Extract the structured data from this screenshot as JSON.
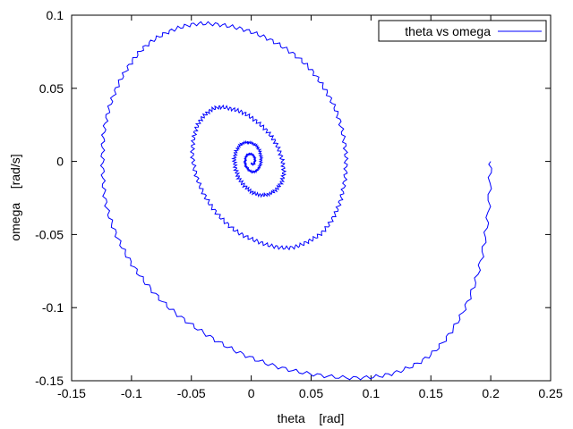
{
  "chart_data": {
    "type": "line",
    "title": "",
    "xlabel": "theta    [rad]",
    "ylabel": "omega    [rad/s]",
    "xlim": [
      -0.15,
      0.25
    ],
    "ylim": [
      -0.15,
      0.1
    ],
    "x_ticks": [
      -0.15,
      -0.1,
      -0.05,
      0,
      0.05,
      0.1,
      0.15,
      0.2,
      0.25
    ],
    "x_tick_labels": [
      "-0.15",
      "-0.1",
      "-0.05",
      "0",
      "0.05",
      "0.1",
      "0.15",
      "0.2",
      "0.25"
    ],
    "y_ticks": [
      -0.15,
      -0.1,
      -0.05,
      0,
      0.05,
      0.1
    ],
    "y_tick_labels": [
      "-0.15",
      "-0.1",
      "-0.05",
      "0",
      "0.05",
      "0.1"
    ],
    "grid": false,
    "legend_position": "top-right",
    "series": [
      {
        "name": "theta vs omega",
        "color": "#0000ff",
        "points": [
          [
            0.2,
            0.0
          ],
          [
            0.197,
            -0.042
          ],
          [
            0.188,
            -0.08
          ],
          [
            0.172,
            -0.11
          ],
          [
            0.15,
            -0.132
          ],
          [
            0.122,
            -0.144
          ],
          [
            0.091,
            -0.148
          ],
          [
            0.055,
            -0.146
          ],
          [
            0.02,
            -0.14
          ],
          [
            -0.012,
            -0.13
          ],
          [
            -0.042,
            -0.116
          ],
          [
            -0.07,
            -0.099
          ],
          [
            -0.093,
            -0.078
          ],
          [
            -0.11,
            -0.055
          ],
          [
            -0.121,
            -0.03
          ],
          [
            -0.124,
            -0.005
          ],
          [
            -0.123,
            0.02
          ],
          [
            -0.116,
            0.043
          ],
          [
            -0.104,
            0.063
          ],
          [
            -0.088,
            0.079
          ],
          [
            -0.068,
            0.089
          ],
          [
            -0.046,
            0.094
          ],
          [
            -0.022,
            0.093
          ],
          [
            0.002,
            0.088
          ],
          [
            0.025,
            0.079
          ],
          [
            0.046,
            0.066
          ],
          [
            0.061,
            0.05
          ],
          [
            0.072,
            0.032
          ],
          [
            0.078,
            0.012
          ],
          [
            0.079,
            -0.005
          ],
          [
            0.076,
            -0.022
          ],
          [
            0.07,
            -0.036
          ],
          [
            0.06,
            -0.048
          ],
          [
            0.047,
            -0.055
          ],
          [
            0.033,
            -0.059
          ],
          [
            0.018,
            -0.058
          ],
          [
            0.003,
            -0.054
          ],
          [
            -0.012,
            -0.048
          ],
          [
            -0.026,
            -0.038
          ],
          [
            -0.037,
            -0.026
          ],
          [
            -0.045,
            -0.012
          ],
          [
            -0.049,
            0.003
          ],
          [
            -0.048,
            0.016
          ],
          [
            -0.044,
            0.026
          ],
          [
            -0.037,
            0.033
          ],
          [
            -0.028,
            0.037
          ],
          [
            -0.017,
            0.036
          ],
          [
            -0.006,
            0.033
          ],
          [
            0.005,
            0.027
          ],
          [
            0.015,
            0.019
          ],
          [
            0.022,
            0.01
          ],
          [
            0.026,
            0.0
          ],
          [
            0.027,
            -0.009
          ],
          [
            0.024,
            -0.016
          ],
          [
            0.018,
            -0.021
          ],
          [
            0.011,
            -0.023
          ],
          [
            0.003,
            -0.022
          ],
          [
            -0.004,
            -0.018
          ],
          [
            -0.01,
            -0.012
          ],
          [
            -0.013,
            -0.005
          ],
          [
            -0.014,
            0.002
          ],
          [
            -0.012,
            0.008
          ],
          [
            -0.008,
            0.012
          ],
          [
            -0.003,
            0.013
          ],
          [
            0.002,
            0.012
          ],
          [
            0.006,
            0.009
          ],
          [
            0.008,
            0.004
          ],
          [
            0.008,
            -0.001
          ],
          [
            0.006,
            -0.005
          ],
          [
            0.003,
            -0.007
          ],
          [
            0.0,
            -0.007
          ],
          [
            -0.003,
            -0.005
          ],
          [
            -0.005,
            -0.002
          ],
          [
            -0.005,
            0.001
          ],
          [
            -0.004,
            0.004
          ],
          [
            -0.002,
            0.005
          ],
          [
            0.0,
            0.005
          ],
          [
            0.002,
            0.004
          ],
          [
            0.003,
            0.002
          ],
          [
            0.003,
            0.0
          ],
          [
            0.002,
            -0.002
          ],
          [
            0.001,
            -0.002
          ],
          [
            0.0,
            -0.001
          ]
        ]
      }
    ]
  }
}
